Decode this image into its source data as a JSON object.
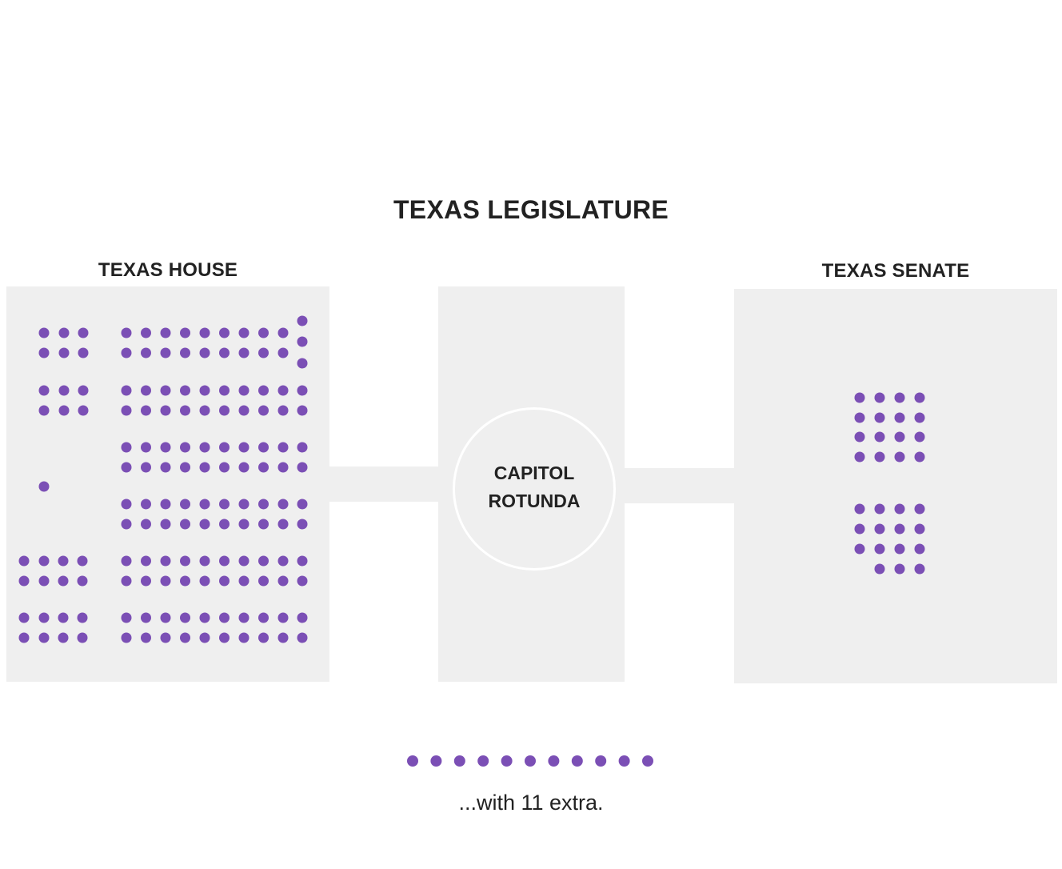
{
  "title": "TEXAS LEGISLATURE",
  "house": {
    "label": "TEXAS HOUSE"
  },
  "senate": {
    "label": "TEXAS SENATE"
  },
  "rotunda": {
    "line1": "CAPITOL",
    "line2": "ROTUNDA"
  },
  "extra": {
    "count": 11,
    "note": "...with 11 extra."
  },
  "colors": {
    "seat": "#7b4fb5",
    "room": "#efefef",
    "text": "#222222"
  }
}
